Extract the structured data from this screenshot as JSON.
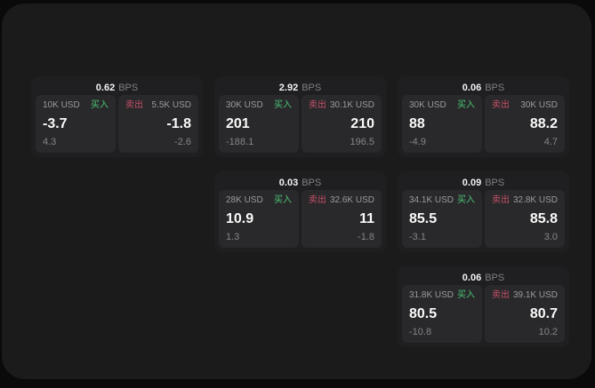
{
  "labels": {
    "bps": "BPS",
    "buy": "买入",
    "sell": "卖出"
  },
  "colors": {
    "panel_bg": "#1b1b1c",
    "card_bg": "#1f1f21",
    "tile_bg": "#29292b",
    "buy_green": "#4cc475",
    "sell_red": "#c75068"
  },
  "cards": [
    {
      "bps": "0.62",
      "buy": {
        "amount": "10K USD",
        "value": "-3.7",
        "delta": "4.3"
      },
      "sell": {
        "amount": "5.5K USD",
        "value": "-1.8",
        "delta": "-2.6"
      }
    },
    {
      "bps": "2.92",
      "buy": {
        "amount": "30K USD",
        "value": "201",
        "delta": "-188.1"
      },
      "sell": {
        "amount": "30.1K USD",
        "value": "210",
        "delta": "196.5"
      }
    },
    {
      "bps": "0.06",
      "buy": {
        "amount": "30K USD",
        "value": "88",
        "delta": "-4.9"
      },
      "sell": {
        "amount": "30K USD",
        "value": "88.2",
        "delta": "4.7"
      }
    },
    {
      "bps": "0.03",
      "buy": {
        "amount": "28K USD",
        "value": "10.9",
        "delta": "1.3"
      },
      "sell": {
        "amount": "32.6K USD",
        "value": "11",
        "delta": "-1.8"
      }
    },
    {
      "bps": "0.09",
      "buy": {
        "amount": "34.1K USD",
        "value": "85.5",
        "delta": "-3.1"
      },
      "sell": {
        "amount": "32.8K USD",
        "value": "85.8",
        "delta": "3.0"
      }
    },
    {
      "bps": "0.06",
      "buy": {
        "amount": "31.8K USD",
        "value": "80.5",
        "delta": "-10.8"
      },
      "sell": {
        "amount": "39.1K USD",
        "value": "80.7",
        "delta": "10.2"
      }
    }
  ]
}
